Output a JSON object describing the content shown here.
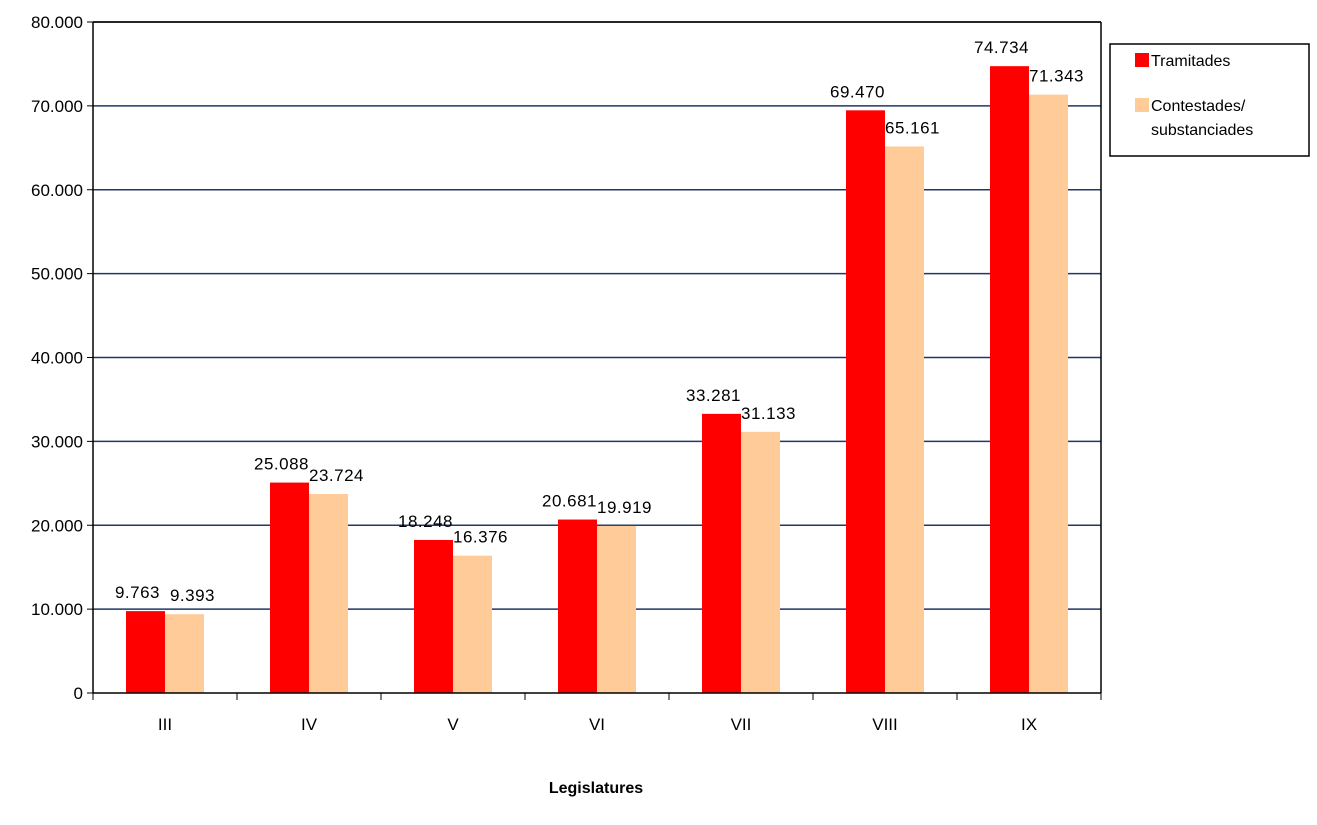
{
  "chart_data": {
    "type": "bar",
    "categories": [
      "III",
      "IV",
      "V",
      "VI",
      "VII",
      "VIII",
      "IX"
    ],
    "series": [
      {
        "name": "Tramitades",
        "color": "#ff0000",
        "values": [
          9763,
          25088,
          18248,
          20681,
          33281,
          69470,
          74734
        ],
        "labels": [
          "9.763",
          "25.088",
          "18.248",
          "20.681",
          "33.281",
          "69.470",
          "74.734"
        ]
      },
      {
        "name": "Contestades/ substanciades",
        "legend_lines": [
          "Contestades/",
          "substanciades"
        ],
        "color": "#ffcc99",
        "values": [
          9393,
          23724,
          16376,
          19919,
          31133,
          65161,
          71343
        ],
        "labels": [
          "9.393",
          "23.724",
          "16.376",
          "19.919",
          "31.133",
          "65.161",
          "71.343"
        ]
      }
    ],
    "ylim": [
      0,
      80000
    ],
    "yticks": [
      0,
      10000,
      20000,
      30000,
      40000,
      50000,
      60000,
      70000,
      80000
    ],
    "ytick_labels": [
      "0",
      "10.000",
      "20.000",
      "30.000",
      "40.000",
      "50.000",
      "60.000",
      "70.000",
      "80.000"
    ],
    "xlabel": "Legislatures",
    "ylabel": "",
    "title": "",
    "grid": true,
    "gridline_color": "#1f3864",
    "legend_position": "top-right"
  }
}
